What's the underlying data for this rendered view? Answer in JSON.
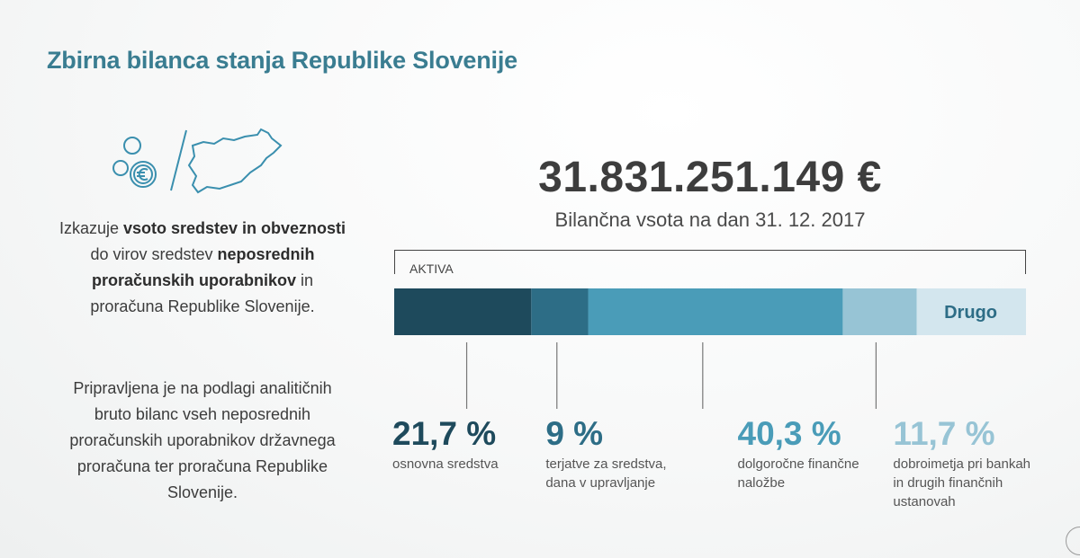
{
  "title": "Zbirna bilanca stanja Republike Slovenije",
  "description": {
    "p1_parts": [
      "Izkazuje ",
      "vsoto sredstev in obveznosti",
      " do virov sredstev ",
      "neposrednih proračunskih uporabnikov",
      " in proračuna Republike Slovenije."
    ],
    "p2": "Pripravljena je na podlagi analitičnih bruto bilanc vseh neposrednih proračunskih uporabnikov državnega proračuna ter proračuna Republike Slovenije."
  },
  "total": {
    "value": "31.831.251.149 €",
    "caption": "Bilančna vsota na dan 31. 12. 2017"
  },
  "bracket_label": "AKTIVA",
  "colors": {
    "title": "#3a7d91",
    "seg1": "#1e4a5c",
    "seg2": "#2d6d86",
    "seg3": "#4a9cb8",
    "seg4": "#97c4d5",
    "seg5": "#d3e6ee"
  },
  "chart_data": {
    "type": "bar",
    "orientation": "horizontal-stacked",
    "unit": "%",
    "segments": [
      {
        "value": 21.7,
        "value_label": "21,7 %",
        "label": "osnovna sredstva",
        "color": "#1e4a5c",
        "text_color": "#1e4a5c"
      },
      {
        "value": 9,
        "value_label": "9 %",
        "label": "terjatve za sredstva, dana v upravljanje",
        "color": "#2d6d86",
        "text_color": "#2d6d86"
      },
      {
        "value": 40.3,
        "value_label": "40,3 %",
        "label": "dolgoročne finančne naložbe",
        "color": "#4a9cb8",
        "text_color": "#4a9cb8"
      },
      {
        "value": 11.7,
        "value_label": "11,7 %",
        "label": "dobroimetja pri bankah in drugih finančnih ustanovah",
        "color": "#97c4d5",
        "text_color": "#97c4d5"
      },
      {
        "value": 17.3,
        "value_label": "",
        "label": "Drugo",
        "color": "#d3e6ee",
        "text_color": "#2d6d86"
      }
    ]
  }
}
